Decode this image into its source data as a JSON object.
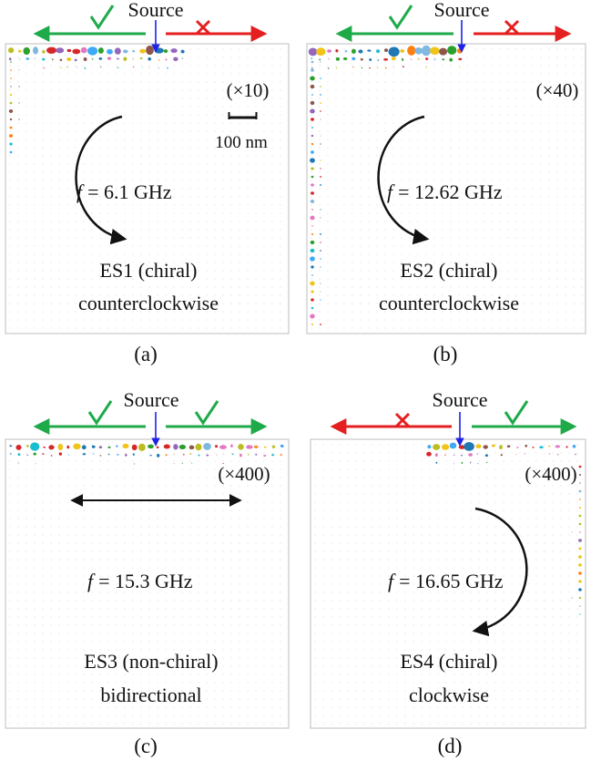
{
  "source_label": "Source",
  "scale_bar_label": "100 nm",
  "colors": {
    "green": "#1faa4a",
    "red": "#e51f1f",
    "blue_source": "#1e22e6",
    "dot_palette": [
      "#1f77b4",
      "#2ca02c",
      "#d62728",
      "#ff7f0e",
      "#9467bd",
      "#17becf",
      "#bcbd22",
      "#e377c2",
      "#8c564b",
      "#f0c419",
      "#3fa9f5",
      "#7fb8e0"
    ]
  },
  "panels": [
    {
      "letter": "(a)",
      "multiplier": "(×10)",
      "freq_var": "f",
      "freq_value": "= 6.1 GHz",
      "label_line1": "ES1 (chiral)",
      "label_line2": "counterclockwise",
      "left_mark": "check",
      "right_mark": "cross",
      "rotation": "counterclockwise",
      "edges": "top-left"
    },
    {
      "letter": "(b)",
      "multiplier": "(×40)",
      "freq_var": "f",
      "freq_value": "= 12.62 GHz",
      "label_line1": "ES2 (chiral)",
      "label_line2": "counterclockwise",
      "left_mark": "check",
      "right_mark": "cross",
      "rotation": "counterclockwise",
      "edges": "top-left-full"
    },
    {
      "letter": "(c)",
      "multiplier": "(×400)",
      "freq_var": "f",
      "freq_value": "= 15.3 GHz",
      "label_line1": "ES3 (non-chiral)",
      "label_line2": "bidirectional",
      "left_mark": "check",
      "right_mark": "check",
      "rotation": "bidirectional",
      "edges": "top"
    },
    {
      "letter": "(d)",
      "multiplier": "(×400)",
      "freq_var": "f",
      "freq_value": "= 16.65 GHz",
      "label_line1": "ES4 (chiral)",
      "label_line2": "clockwise",
      "left_mark": "cross",
      "right_mark": "check",
      "rotation": "clockwise",
      "edges": "top-right"
    }
  ]
}
